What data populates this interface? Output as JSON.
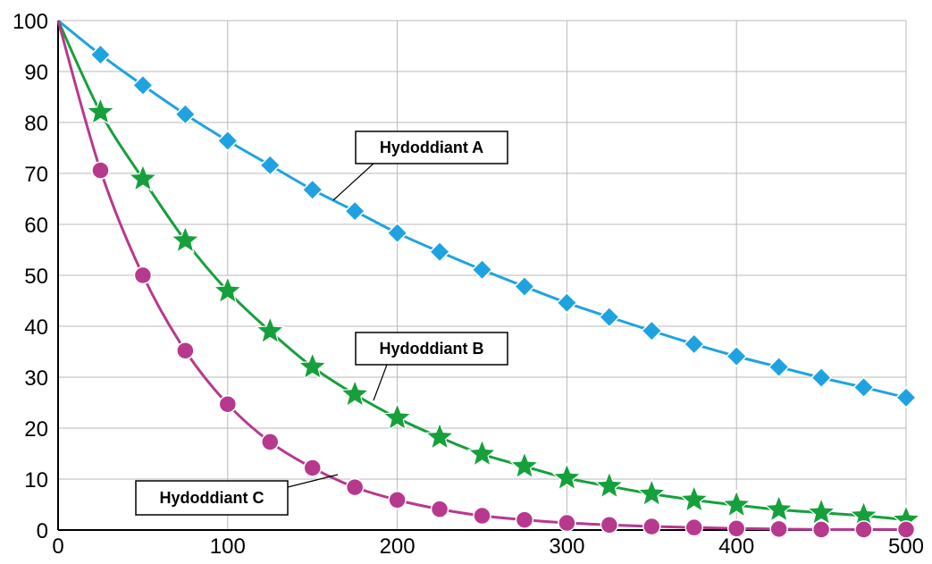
{
  "chart_data": {
    "type": "line",
    "title": "",
    "xlabel": "",
    "ylabel": "",
    "xlim": [
      0,
      500
    ],
    "ylim": [
      0,
      100
    ],
    "x_ticks": [
      0,
      100,
      200,
      300,
      400,
      500
    ],
    "y_ticks": [
      0,
      10,
      20,
      30,
      40,
      50,
      60,
      70,
      80,
      90,
      100
    ],
    "grid": true,
    "series": [
      {
        "name": "Hydoddiant A",
        "color": "#1fa3e0",
        "marker": "diamond",
        "x": [
          0,
          25,
          50,
          75,
          100,
          125,
          150,
          175,
          200,
          225,
          250,
          275,
          300,
          325,
          350,
          375,
          400,
          425,
          450,
          475,
          500
        ],
        "y": [
          100,
          93.3,
          87.3,
          81.6,
          76.4,
          71.6,
          66.8,
          62.6,
          58.3,
          54.6,
          51.1,
          47.8,
          44.6,
          41.8,
          39.1,
          36.5,
          34.1,
          32.0,
          29.9,
          28.0,
          26.0
        ]
      },
      {
        "name": "Hydoddiant B",
        "color": "#15a03c",
        "marker": "star",
        "x": [
          0,
          25,
          50,
          75,
          100,
          125,
          150,
          175,
          200,
          225,
          250,
          275,
          300,
          325,
          350,
          375,
          400,
          425,
          450,
          475,
          500
        ],
        "y": [
          100,
          82.0,
          68.9,
          56.8,
          46.9,
          39.0,
          32.0,
          26.6,
          22.0,
          18.2,
          14.9,
          12.5,
          10.2,
          8.6,
          7.1,
          5.9,
          4.9,
          4.0,
          3.4,
          2.8,
          2.0
        ]
      },
      {
        "name": "Hydoddiant C",
        "color": "#b7398e",
        "marker": "circle",
        "x": [
          0,
          25,
          50,
          75,
          100,
          125,
          150,
          175,
          200,
          225,
          250,
          275,
          300,
          325,
          350,
          375,
          400,
          425,
          450,
          475,
          500
        ],
        "y": [
          100,
          70.6,
          50.0,
          35.2,
          24.7,
          17.3,
          12.2,
          8.4,
          5.9,
          4.1,
          2.8,
          2.0,
          1.4,
          1.0,
          0.7,
          0.5,
          0.3,
          0.2,
          0.1,
          0.1,
          0.1
        ]
      }
    ],
    "annotations": [
      {
        "text": "Hydoddiant A",
        "series": 0
      },
      {
        "text": "Hydoddiant B",
        "series": 1
      },
      {
        "text": "Hydoddiant C",
        "series": 2
      }
    ]
  }
}
